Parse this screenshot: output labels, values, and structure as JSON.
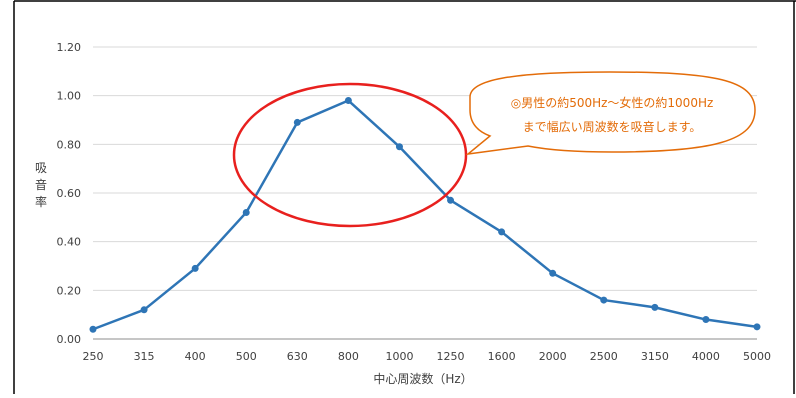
{
  "chart_data": {
    "type": "line",
    "title": "",
    "xlabel": "中心周波数（Hz）",
    "ylabel": "吸音率",
    "categories": [
      "250",
      "315",
      "400",
      "500",
      "630",
      "800",
      "1000",
      "1250",
      "1600",
      "2000",
      "2500",
      "3150",
      "4000",
      "5000"
    ],
    "series": [
      {
        "values": [
          0.04,
          0.12,
          0.29,
          0.52,
          0.89,
          0.98,
          0.79,
          0.57,
          0.44,
          0.27,
          0.16,
          0.13,
          0.08,
          0.05
        ]
      }
    ],
    "ylim": [
      0,
      1.2
    ],
    "yticks": [
      "0.00",
      "0.20",
      "0.40",
      "0.60",
      "0.80",
      "1.00",
      "1.20"
    ],
    "grid": true,
    "line_color": "#2E75B6",
    "annotation": {
      "line1": "◎男性の約500Hz～女性の約1000Hz",
      "line2": "まで幅広い周波数を吸音します。",
      "text_color": "#E36C09",
      "border_color": "#E36C09"
    },
    "highlight_ellipse_color": "#E8201E"
  }
}
